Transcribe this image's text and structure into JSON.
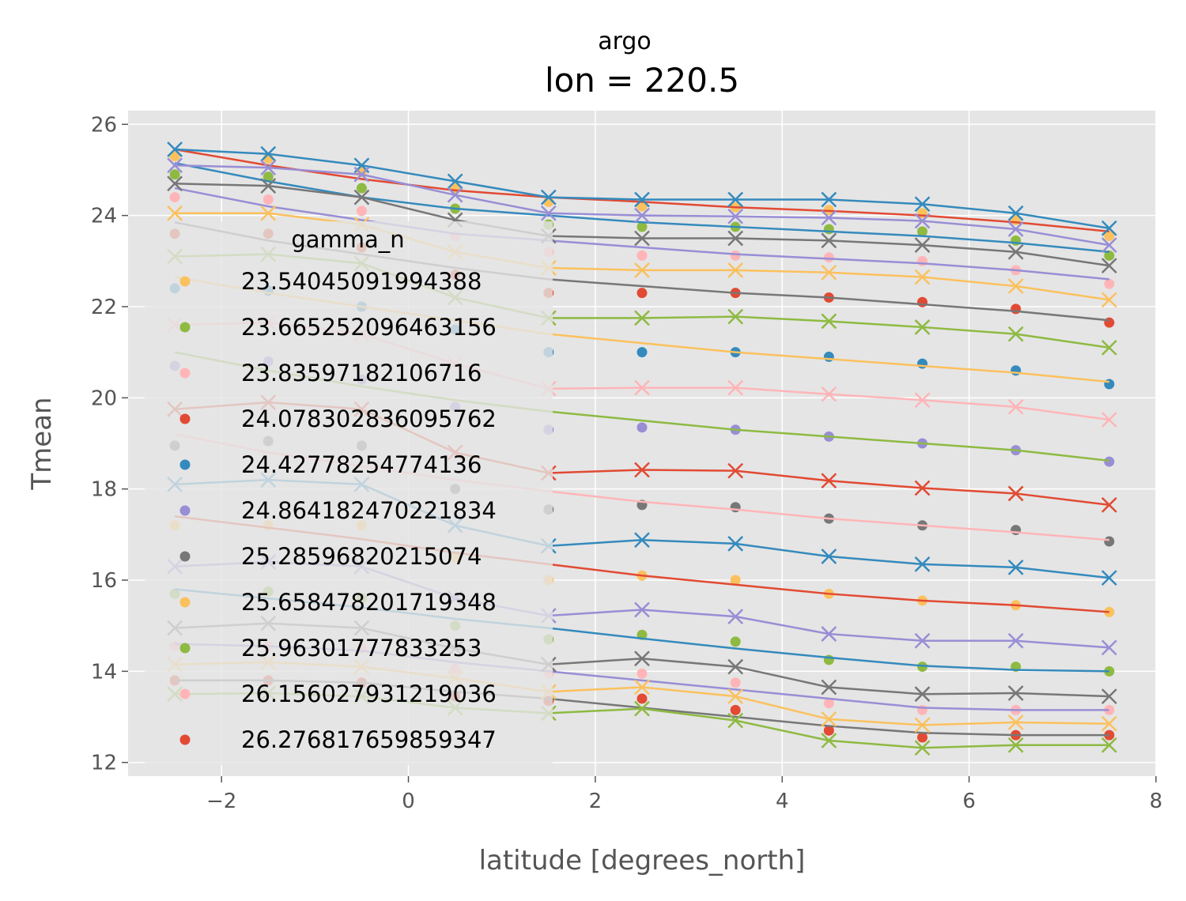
{
  "chart_data": {
    "type": "line",
    "suptitle": "argo",
    "title": "lon = 220.5",
    "xlabel": "latitude [degrees_north]",
    "ylabel": "Tmean",
    "xlim": [
      -3.0,
      8.0
    ],
    "ylim": [
      11.7,
      26.3
    ],
    "xticks": [
      -2,
      0,
      2,
      4,
      6,
      8
    ],
    "yticks": [
      12,
      14,
      16,
      18,
      20,
      22,
      24,
      26
    ],
    "xtick_labels": [
      "−2",
      "0",
      "2",
      "4",
      "6",
      "8"
    ],
    "ytick_labels": [
      "12",
      "14",
      "16",
      "18",
      "20",
      "22",
      "24",
      "26"
    ],
    "grid": true,
    "x": [
      -2.5,
      -1.5,
      -0.5,
      0.5,
      1.5,
      2.5,
      3.5,
      4.5,
      5.5,
      6.5,
      7.5
    ],
    "legend": {
      "title": "gamma_n",
      "position": "center-left",
      "entries": [
        {
          "label": "23.54045091994388",
          "color": "#fbc15e"
        },
        {
          "label": "23.665252096463156",
          "color": "#8eba42"
        },
        {
          "label": "23.83597182106716",
          "color": "#ffb5b8"
        },
        {
          "label": "24.078302836095762",
          "color": "#e24a33"
        },
        {
          "label": "24.42778254774136",
          "color": "#348abd"
        },
        {
          "label": "24.864182470221834",
          "color": "#988ed5"
        },
        {
          "label": "25.28596820215074",
          "color": "#777777"
        },
        {
          "label": "25.658478201719348",
          "color": "#fbc15e"
        },
        {
          "label": "25.96301777833253",
          "color": "#8eba42"
        },
        {
          "label": "26.156027931219036",
          "color": "#ffb5b8"
        },
        {
          "label": "26.276817659859347",
          "color": "#e24a33"
        }
      ]
    },
    "series": [
      {
        "name": "dots-fbc15e-top",
        "color": "#fbc15e",
        "marker": "dot",
        "values": [
          25.3,
          25.25,
          24.95,
          24.6,
          24.3,
          24.2,
          24.18,
          24.12,
          24.05,
          23.9,
          23.55
        ]
      },
      {
        "name": "dots-8eba42-top",
        "color": "#8eba42",
        "marker": "dot",
        "values": [
          24.9,
          24.85,
          24.6,
          24.15,
          23.8,
          23.75,
          23.75,
          23.7,
          23.65,
          23.45,
          23.12
        ]
      },
      {
        "name": "dots-ffb5b8-top",
        "color": "#ffb5b8",
        "marker": "dot",
        "values": [
          24.4,
          24.35,
          24.1,
          23.55,
          23.2,
          23.12,
          23.12,
          23.08,
          23.0,
          22.8,
          22.5
        ]
      },
      {
        "name": "dots-e24a33-a",
        "color": "#e24a33",
        "marker": "dot",
        "values": [
          23.6,
          23.6,
          23.3,
          22.7,
          22.3,
          22.3,
          22.3,
          22.2,
          22.1,
          21.95,
          21.65
        ]
      },
      {
        "name": "dots-348abd-a",
        "color": "#348abd",
        "marker": "dot",
        "values": [
          22.4,
          22.35,
          22.0,
          21.5,
          21.0,
          21.0,
          21.0,
          20.9,
          20.75,
          20.6,
          20.3
        ]
      },
      {
        "name": "dots-988ed5-a",
        "color": "#988ed5",
        "marker": "dot",
        "values": [
          20.7,
          20.8,
          20.4,
          19.8,
          19.3,
          19.35,
          19.3,
          19.15,
          19.0,
          18.85,
          18.6
        ]
      },
      {
        "name": "dots-777777-a",
        "color": "#777777",
        "marker": "dot",
        "values": [
          18.95,
          19.05,
          18.95,
          18.0,
          17.55,
          17.65,
          17.6,
          17.35,
          17.2,
          17.1,
          16.85
        ]
      },
      {
        "name": "dots-fbc15e-b",
        "color": "#fbc15e",
        "marker": "dot",
        "values": [
          17.2,
          17.2,
          17.2,
          16.5,
          16.0,
          16.1,
          16.0,
          15.7,
          15.55,
          15.45,
          15.3
        ]
      },
      {
        "name": "dots-8eba42-b",
        "color": "#8eba42",
        "marker": "dot",
        "values": [
          15.7,
          15.75,
          15.6,
          15.0,
          14.7,
          14.8,
          14.65,
          14.25,
          14.1,
          14.1,
          14.0
        ]
      },
      {
        "name": "dots-ffb5b8-b",
        "color": "#ffb5b8",
        "marker": "dot",
        "values": [
          14.55,
          14.55,
          14.5,
          14.05,
          13.95,
          13.95,
          13.75,
          13.3,
          13.15,
          13.15,
          13.15
        ]
      },
      {
        "name": "dots-e24a33-b",
        "color": "#e24a33",
        "marker": "dot",
        "values": [
          13.8,
          13.8,
          13.75,
          13.45,
          13.35,
          13.4,
          13.15,
          12.7,
          12.55,
          12.6,
          12.6
        ]
      },
      {
        "name": "line-e24a33-top",
        "color": "#e24a33",
        "marker": "none",
        "values": [
          25.45,
          25.1,
          24.8,
          24.55,
          24.4,
          24.3,
          24.18,
          24.1,
          24.0,
          23.85,
          23.65
        ]
      },
      {
        "name": "line-348abd-top",
        "color": "#348abd",
        "marker": "none",
        "values": [
          25.15,
          24.75,
          24.4,
          24.15,
          24.0,
          23.85,
          23.75,
          23.65,
          23.55,
          23.4,
          23.2
        ]
      },
      {
        "name": "line-988ed5-a",
        "color": "#988ed5",
        "marker": "none",
        "values": [
          24.6,
          24.2,
          23.9,
          23.6,
          23.45,
          23.3,
          23.15,
          23.05,
          22.95,
          22.8,
          22.6
        ]
      },
      {
        "name": "line-777777-a",
        "color": "#777777",
        "marker": "none",
        "values": [
          23.85,
          23.45,
          23.15,
          22.85,
          22.6,
          22.45,
          22.3,
          22.2,
          22.05,
          21.9,
          21.7
        ]
      },
      {
        "name": "line-fbc15e-a",
        "color": "#fbc15e",
        "marker": "none",
        "values": [
          22.65,
          22.3,
          22.0,
          21.7,
          21.4,
          21.2,
          21.0,
          20.85,
          20.7,
          20.55,
          20.35
        ]
      },
      {
        "name": "line-8eba42-a",
        "color": "#8eba42",
        "marker": "none",
        "values": [
          21.0,
          20.6,
          20.25,
          19.95,
          19.7,
          19.5,
          19.3,
          19.15,
          19.0,
          18.85,
          18.62
        ]
      },
      {
        "name": "line-ffb5b8-a",
        "color": "#ffb5b8",
        "marker": "none",
        "values": [
          19.2,
          18.8,
          18.5,
          18.2,
          17.95,
          17.72,
          17.55,
          17.35,
          17.2,
          17.05,
          16.88
        ]
      },
      {
        "name": "line-e24a33-a",
        "color": "#e24a33",
        "marker": "none",
        "values": [
          17.4,
          17.15,
          16.9,
          16.6,
          16.35,
          16.1,
          15.9,
          15.7,
          15.55,
          15.45,
          15.3
        ]
      },
      {
        "name": "line-348abd-a",
        "color": "#348abd",
        "marker": "none",
        "values": [
          15.8,
          15.6,
          15.4,
          15.15,
          14.95,
          14.72,
          14.5,
          14.3,
          14.12,
          14.03,
          14.0
        ]
      },
      {
        "name": "line-988ed5-b",
        "color": "#988ed5",
        "marker": "none",
        "values": [
          14.6,
          14.55,
          14.45,
          14.2,
          14.0,
          13.8,
          13.6,
          13.4,
          13.2,
          13.15,
          13.15
        ]
      },
      {
        "name": "line-777777-b",
        "color": "#777777",
        "marker": "none",
        "values": [
          13.8,
          13.8,
          13.75,
          13.55,
          13.4,
          13.2,
          13.0,
          12.8,
          12.65,
          12.6,
          12.6
        ]
      },
      {
        "name": "x-348abd",
        "color": "#348abd",
        "marker": "x",
        "values": [
          25.45,
          25.35,
          25.1,
          24.75,
          24.4,
          24.35,
          24.35,
          24.35,
          24.25,
          24.05,
          23.72
        ]
      },
      {
        "name": "x-988ed5-a",
        "color": "#988ed5",
        "marker": "x",
        "values": [
          25.1,
          25.05,
          24.9,
          24.45,
          24.05,
          24.0,
          23.98,
          23.95,
          23.88,
          23.7,
          23.35
        ]
      },
      {
        "name": "x-777777-a",
        "color": "#777777",
        "marker": "x",
        "values": [
          24.7,
          24.65,
          24.4,
          23.9,
          23.55,
          23.5,
          23.5,
          23.45,
          23.35,
          23.2,
          22.9
        ]
      },
      {
        "name": "x-fbc15e-a",
        "color": "#fbc15e",
        "marker": "x",
        "values": [
          24.05,
          24.05,
          23.8,
          23.2,
          22.85,
          22.8,
          22.8,
          22.75,
          22.65,
          22.45,
          22.15
        ]
      },
      {
        "name": "x-8eba42-a",
        "color": "#8eba42",
        "marker": "x",
        "values": [
          23.1,
          23.15,
          22.95,
          22.2,
          21.75,
          21.75,
          21.78,
          21.68,
          21.55,
          21.4,
          21.1
        ]
      },
      {
        "name": "x-ffb5b8-a",
        "color": "#ffb5b8",
        "marker": "x",
        "values": [
          21.6,
          21.65,
          21.4,
          20.75,
          20.2,
          20.22,
          20.22,
          20.08,
          19.95,
          19.8,
          19.52
        ]
      },
      {
        "name": "x-e24a33",
        "color": "#e24a33",
        "marker": "x",
        "values": [
          19.75,
          19.9,
          19.75,
          18.8,
          18.35,
          18.42,
          18.4,
          18.18,
          18.02,
          17.9,
          17.65
        ]
      },
      {
        "name": "x-348abd-b",
        "color": "#348abd",
        "marker": "x",
        "values": [
          18.1,
          18.2,
          18.1,
          17.2,
          16.75,
          16.88,
          16.8,
          16.52,
          16.35,
          16.28,
          16.05
        ]
      },
      {
        "name": "x-988ed5-b",
        "color": "#988ed5",
        "marker": "x",
        "values": [
          16.3,
          16.4,
          16.3,
          15.6,
          15.22,
          15.35,
          15.2,
          14.82,
          14.67,
          14.67,
          14.52
        ]
      },
      {
        "name": "x-777777-b",
        "color": "#777777",
        "marker": "x",
        "values": [
          14.95,
          15.05,
          14.95,
          14.5,
          14.15,
          14.28,
          14.1,
          13.65,
          13.5,
          13.52,
          13.45
        ]
      },
      {
        "name": "x-fbc15e-b",
        "color": "#fbc15e",
        "marker": "x",
        "values": [
          14.15,
          14.2,
          14.1,
          13.85,
          13.55,
          13.65,
          13.45,
          12.95,
          12.82,
          12.88,
          12.85
        ]
      },
      {
        "name": "x-8eba42-b",
        "color": "#8eba42",
        "marker": "x",
        "values": [
          13.5,
          13.52,
          13.45,
          13.2,
          13.08,
          13.18,
          12.92,
          12.48,
          12.32,
          12.38,
          12.38
        ]
      }
    ]
  }
}
